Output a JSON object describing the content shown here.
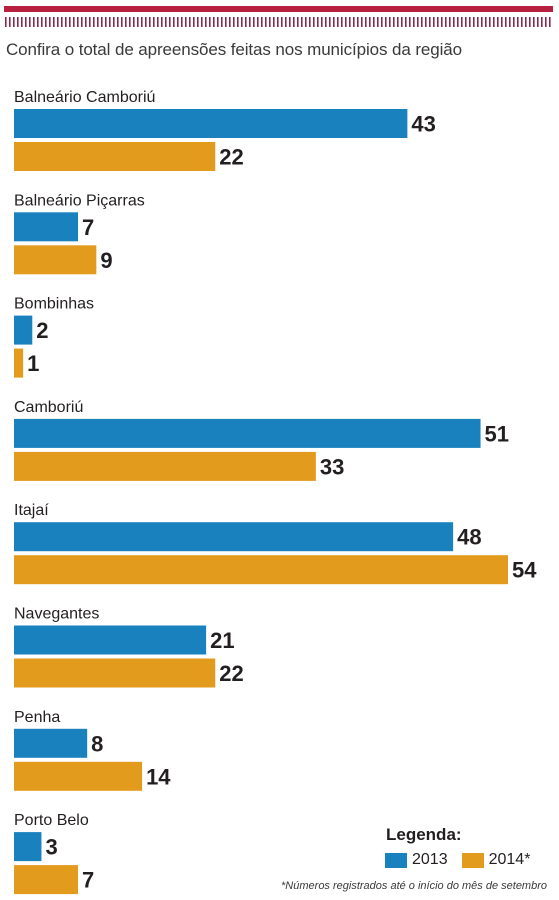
{
  "subtitle": "Confira o total de apreensões feitas nos municípios da região",
  "colors": {
    "accent_rule": "#b8203f",
    "tick_marks": "#8a2a4a",
    "series_2013": "#1a81bf",
    "series_2014": "#e39b1e"
  },
  "chart_data": {
    "type": "bar",
    "orientation": "horizontal",
    "categories": [
      "Balneário Camboriú",
      "Balneário Piçarras",
      "Bombinhas",
      "Camboriú",
      "Itajaí",
      "Navegantes",
      "Penha",
      "Porto Belo"
    ],
    "series": [
      {
        "name": "2013",
        "values": [
          43,
          7,
          2,
          51,
          48,
          21,
          8,
          3
        ]
      },
      {
        "name": "2014*",
        "values": [
          22,
          9,
          1,
          33,
          54,
          22,
          14,
          7
        ]
      }
    ],
    "xlim": [
      0,
      54
    ],
    "grid": false,
    "legend_position": "bottom-right"
  },
  "legend": {
    "title": "Legenda:",
    "items": [
      "2013",
      "2014*"
    ]
  },
  "footnote": "*Números registrados até o início do mês de setembro"
}
